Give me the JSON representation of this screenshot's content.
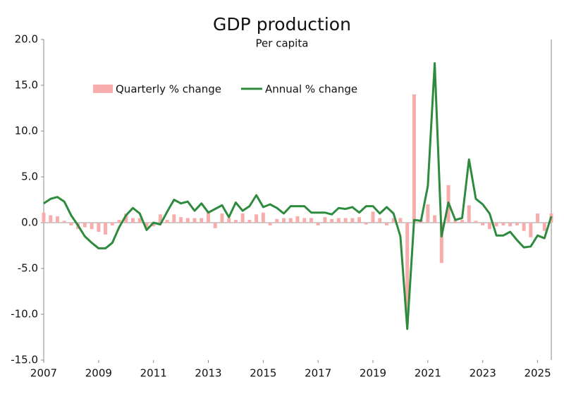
{
  "chart_data": {
    "type": "bar-line",
    "title": "GDP production",
    "subtitle": "Per capita",
    "categories": [
      "2007",
      null,
      null,
      null,
      null,
      null,
      null,
      null,
      "2009",
      null,
      null,
      null,
      null,
      null,
      null,
      null,
      "2011",
      null,
      null,
      null,
      null,
      null,
      null,
      null,
      "2013",
      null,
      null,
      null,
      null,
      null,
      null,
      null,
      "2015",
      null,
      null,
      null,
      null,
      null,
      null,
      null,
      "2017",
      null,
      null,
      null,
      null,
      null,
      null,
      null,
      "2019",
      null,
      null,
      null,
      null,
      null,
      null,
      null,
      "2021",
      null,
      null,
      null,
      null,
      null,
      null,
      null,
      "2023",
      null,
      null,
      null,
      null,
      null,
      null,
      null,
      "2025",
      null,
      null
    ],
    "series": [
      {
        "name": "Quarterly % change",
        "type": "bar",
        "color": "#f7adab",
        "values": [
          1.1,
          0.8,
          0.7,
          0.2,
          -0.3,
          -0.7,
          -0.5,
          -0.7,
          -1.0,
          -1.3,
          -0.3,
          0.3,
          1.0,
          0.5,
          0.5,
          -0.5,
          -0.4,
          0.9,
          0.3,
          0.9,
          0.6,
          0.5,
          0.5,
          0.5,
          1.3,
          -0.6,
          1.0,
          0.5,
          0.3,
          1.0,
          0.3,
          0.9,
          1.1,
          -0.3,
          0.4,
          0.5,
          0.5,
          0.7,
          0.5,
          0.5,
          -0.3,
          0.6,
          0.4,
          0.5,
          0.5,
          0.5,
          0.6,
          -0.2,
          1.2,
          0.5,
          -0.3,
          0.5,
          0.5,
          -9.7,
          14.0,
          0.3,
          2.0,
          0.8,
          -4.4,
          4.1,
          0.3,
          0.3,
          1.9,
          0.2,
          -0.3,
          -0.7,
          -0.4,
          -0.3,
          -0.4,
          -0.3,
          -0.9,
          -1.6,
          1.0,
          -0.9,
          1.0
        ]
      },
      {
        "name": "Annual % change",
        "type": "line",
        "color": "#2e8b3e",
        "values": [
          2.1,
          2.6,
          2.8,
          2.3,
          0.8,
          -0.3,
          -1.5,
          -2.2,
          -2.8,
          -2.8,
          -2.2,
          -0.5,
          0.8,
          1.6,
          1.0,
          -0.8,
          0.0,
          -0.2,
          1.2,
          2.5,
          2.1,
          2.3,
          1.3,
          2.1,
          1.1,
          1.5,
          1.9,
          0.6,
          2.2,
          1.3,
          1.8,
          3.0,
          1.7,
          2.0,
          1.6,
          1.0,
          1.8,
          1.8,
          1.8,
          1.1,
          1.1,
          1.1,
          0.9,
          1.6,
          1.5,
          1.7,
          1.1,
          1.8,
          1.8,
          1.0,
          1.7,
          1.0,
          -1.5,
          -11.6,
          0.3,
          0.2,
          4.0,
          17.4,
          -1.5,
          2.2,
          0.3,
          0.5,
          6.9,
          2.6,
          2.0,
          1.0,
          -1.4,
          -1.4,
          -1.0,
          -1.9,
          -2.7,
          -2.6,
          -1.4,
          -1.7,
          0.7
        ]
      }
    ],
    "ylim": [
      -15,
      20
    ],
    "yticks": [
      {
        "value": -15,
        "label": "-15.0"
      },
      {
        "value": -10,
        "label": "-10.0"
      },
      {
        "value": -5,
        "label": "-5.0"
      },
      {
        "value": 0,
        "label": "0.0"
      },
      {
        "value": 5,
        "label": "5.0"
      },
      {
        "value": 10,
        "label": "10.0"
      },
      {
        "value": 15,
        "label": "15.0"
      },
      {
        "value": 20,
        "label": "20.0"
      }
    ],
    "legend": "upper left"
  }
}
